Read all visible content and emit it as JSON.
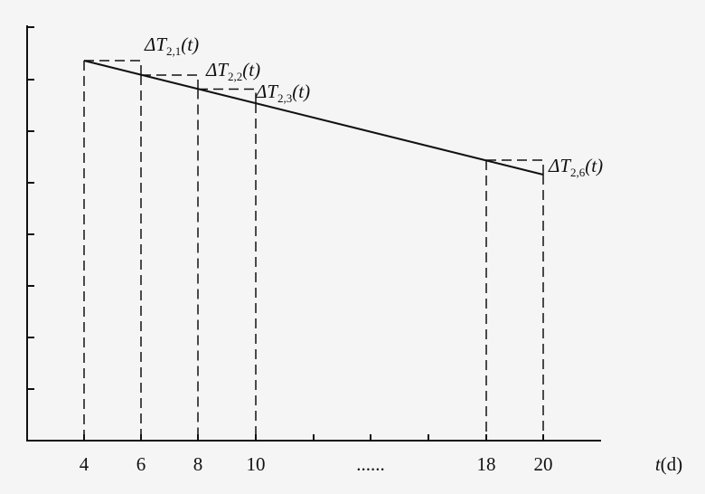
{
  "x_axis": {
    "tick_labels": [
      "4",
      "6",
      "8",
      "10",
      "......",
      "18",
      "20"
    ],
    "label": {
      "var": "t",
      "unit": "(d)"
    }
  },
  "annotations": [
    {
      "base": "ΔT",
      "sub": "2,1",
      "arg": "(t)"
    },
    {
      "base": "ΔT",
      "sub": "2,2",
      "arg": "(t)"
    },
    {
      "base": "ΔT",
      "sub": "2,3",
      "arg": "(t)"
    },
    {
      "base": "ΔT",
      "sub": "2,6",
      "arg": "(t)"
    }
  ]
}
